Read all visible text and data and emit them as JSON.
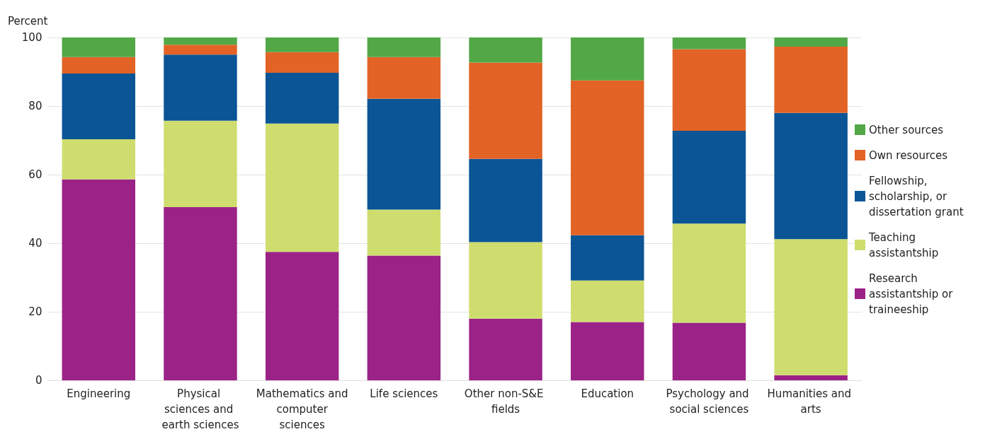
{
  "chart_data": {
    "type": "bar",
    "stacked": true,
    "ylabel": "Percent",
    "categories": [
      "Engineering",
      "Physical sciences and earth sciences",
      "Mathematics and computer sciences",
      "Life sciences",
      "Other non-S&E fields",
      "Education",
      "Psychology and social sciences",
      "Humanities and arts"
    ],
    "series": [
      {
        "name": "Research assistantship or traineeship",
        "color": "#9b2387",
        "values": [
          58.6,
          50.5,
          37.5,
          36.4,
          18.0,
          17.0,
          16.8,
          1.5
        ]
      },
      {
        "name": "Teaching assistantship",
        "color": "#cfdd6e",
        "values": [
          11.7,
          25.2,
          37.4,
          13.4,
          22.3,
          12.1,
          28.9,
          39.7
        ]
      },
      {
        "name": "Fellowship, scholarship, or dissertation grant",
        "color": "#0b5596",
        "values": [
          19.2,
          19.3,
          14.8,
          32.3,
          24.3,
          13.2,
          27.1,
          36.8
        ]
      },
      {
        "name": "Own resources",
        "color": "#e26325",
        "values": [
          4.8,
          2.9,
          6.0,
          12.2,
          28.1,
          45.2,
          23.8,
          19.3
        ]
      },
      {
        "name": "Other sources",
        "color": "#52a846",
        "values": [
          5.7,
          2.1,
          4.3,
          5.7,
          7.3,
          12.5,
          3.4,
          2.7
        ]
      }
    ],
    "ylim": [
      0,
      100
    ],
    "yticks": [
      0,
      20,
      40,
      60,
      80,
      100
    ],
    "grid": "y",
    "legend": "right"
  }
}
